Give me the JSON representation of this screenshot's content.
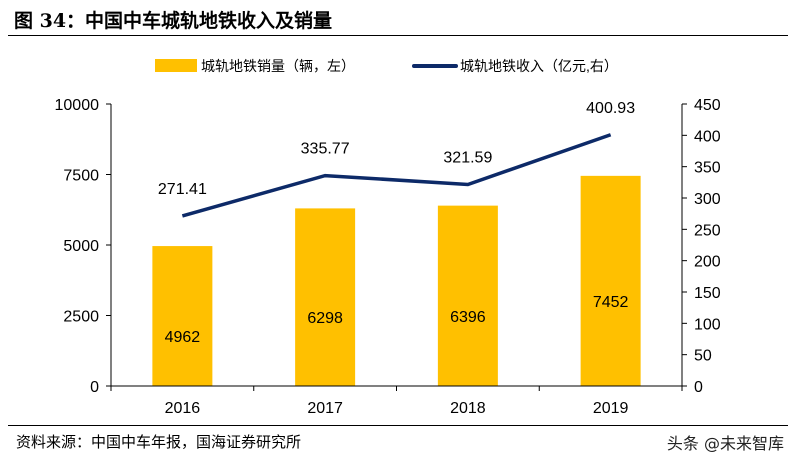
{
  "title": "图 34：中国中车城轨地铁收入及销量",
  "source": "资料来源：中国中车年报，国海证券研究所",
  "watermark": "头条 @未来智库",
  "colors": {
    "bar": "#FFC000",
    "line": "#0D2A68"
  },
  "chart_data": {
    "type": "bar+line",
    "categories": [
      "2016",
      "2017",
      "2018",
      "2019"
    ],
    "series": [
      {
        "name": "城轨地铁销量（辆，左）",
        "type": "bar",
        "axis": "left",
        "values": [
          4962,
          6298,
          6396,
          7452
        ]
      },
      {
        "name": "城轨地铁收入（亿元,右）",
        "type": "line",
        "axis": "right",
        "values": [
          271.41,
          335.77,
          321.59,
          400.93
        ]
      }
    ],
    "left_axis": {
      "range": [
        0,
        10000
      ],
      "ticks": [
        0,
        2500,
        5000,
        7500,
        10000
      ]
    },
    "right_axis": {
      "range": [
        0,
        450
      ],
      "ticks": [
        0,
        50,
        100,
        150,
        200,
        250,
        300,
        350,
        400,
        450
      ]
    },
    "bar_labels": [
      "4962",
      "6298",
      "6396",
      "7452"
    ],
    "line_labels": [
      "271.41",
      "335.77",
      "321.59",
      "400.93"
    ],
    "legend_placement": "top",
    "grid": false
  }
}
